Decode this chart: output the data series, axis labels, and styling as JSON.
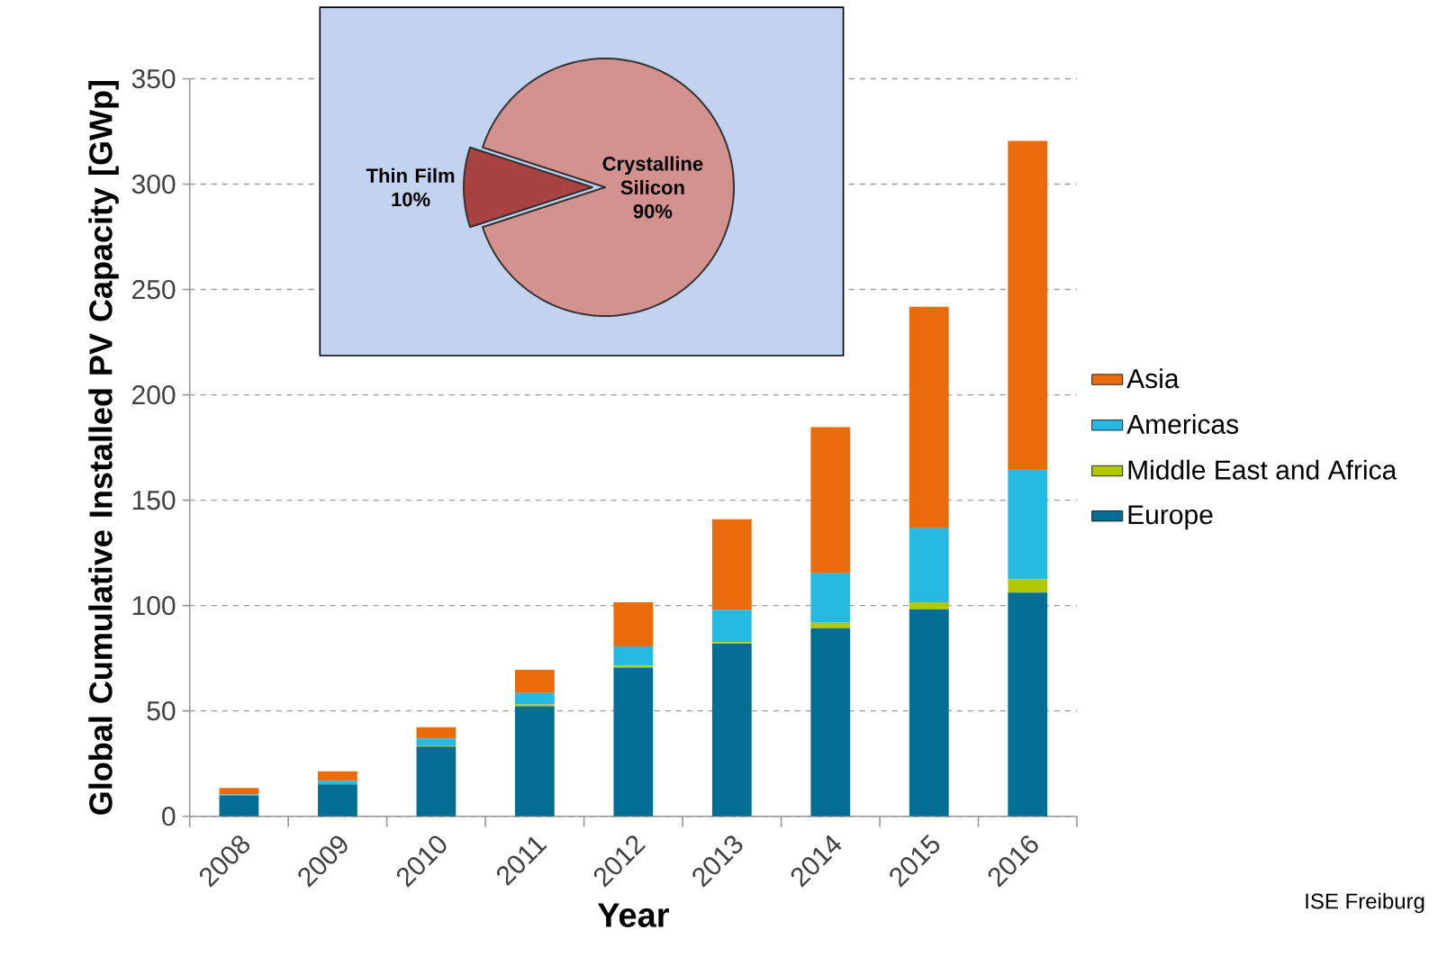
{
  "chart_data": [
    {
      "type": "bar",
      "stacked": true,
      "xlabel": "Year",
      "ylabel": "Global Cumulative Installed PV Capacity [GWp]",
      "categories": [
        "2008",
        "2009",
        "2010",
        "2011",
        "2012",
        "2013",
        "2014",
        "2015",
        "2016"
      ],
      "series": [
        {
          "name": "Europe",
          "color": "#036e93",
          "values": [
            9.7,
            15.1,
            33.1,
            52.2,
            70.6,
            81.9,
            89.3,
            98.2,
            106.2
          ]
        },
        {
          "name": "Middle East and Africa",
          "color": "#b2c800",
          "values": [
            0,
            0,
            0.5,
            0.9,
            0.8,
            0.7,
            2.5,
            3.4,
            6.3
          ]
        },
        {
          "name": "Americas",
          "color": "#26b9e1",
          "values": [
            0.6,
            1.8,
            3.3,
            5.4,
            9.2,
            15.4,
            23.5,
            35.1,
            52.3
          ]
        },
        {
          "name": "Asia",
          "color": "#e96b0b",
          "values": [
            3.1,
            4.4,
            5.4,
            11.0,
            21.0,
            43.0,
            69.4,
            105.1,
            155.7
          ]
        }
      ],
      "ylim": [
        0,
        350
      ],
      "yticks": [
        0,
        50,
        100,
        150,
        200,
        250,
        300,
        350
      ],
      "grid": "y",
      "legend": "right",
      "annotations": [
        "ISE Freiburg"
      ]
    },
    {
      "type": "pie",
      "categories": [
        "Thin Film",
        "Crystalline Silicon"
      ],
      "values": [
        10,
        90
      ],
      "colors": [
        "#a84341",
        "#d4928f"
      ],
      "value_labels": [
        "10%",
        "90%"
      ]
    }
  ]
}
